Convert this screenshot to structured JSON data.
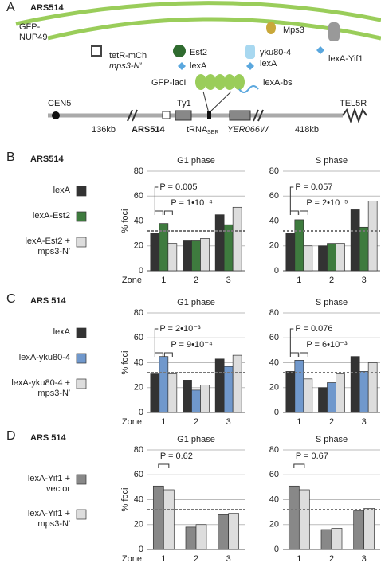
{
  "panel_a": {
    "label": "A",
    "title": "ARS514",
    "nup49": [
      "GFP-",
      "NUP49"
    ],
    "mps3": "Mps3",
    "tetr": "tetR-mCh",
    "mps3n": "mps3-N′",
    "est2": "Est2",
    "lexa1": "lexA",
    "yku": "yku80-4",
    "lexa2": "lexA",
    "yif1": "lexA-Yif1",
    "lacI": "GFP-lacI",
    "lexabs": "lexA-bs",
    "cen": "CEN5",
    "ty1": "Ty1",
    "tel": "TEL5R",
    "kb1": "136kb",
    "ars": "ARS514",
    "trna": "tRNA",
    "ser": "SER",
    "yer": "YER066W",
    "kb2": "418kb"
  },
  "chart_data": [
    {
      "type": "bar",
      "label": "B",
      "heading": "ARS514",
      "ylabel": "% foci",
      "xlabel": "Zone",
      "categories": [
        "1",
        "2",
        "3"
      ],
      "ylim": [
        0,
        80
      ],
      "yticks": [
        0,
        20,
        40,
        60,
        80
      ],
      "grid": true,
      "reference_line": 32,
      "series": [
        {
          "name": "lexA",
          "color": "#333333"
        },
        {
          "name": "lexA-Est2",
          "color": "#3e7b3e"
        },
        {
          "name": "lexA-Est2 + mps3-N′",
          "color": "#dddddd"
        }
      ],
      "facets": [
        {
          "title": "G1 phase",
          "series_values": [
            [
              30,
              24,
              45
            ],
            [
              38,
              24,
              37
            ],
            [
              22,
              26,
              51
            ]
          ],
          "annotations": [
            "P = 0.005",
            "P = 1•10⁻⁴"
          ]
        },
        {
          "title": "S phase",
          "series_values": [
            [
              30,
              20,
              49
            ],
            [
              41,
              22,
              35
            ],
            [
              20,
              22,
              56
            ]
          ],
          "annotations": [
            "P = 0.057",
            "P = 2•10⁻⁵"
          ]
        }
      ]
    },
    {
      "type": "bar",
      "label": "C",
      "heading": "ARS 514",
      "ylabel": "% foci",
      "xlabel": "Zone",
      "categories": [
        "1",
        "2",
        "3"
      ],
      "ylim": [
        0,
        80
      ],
      "yticks": [
        0,
        20,
        40,
        60,
        80
      ],
      "grid": true,
      "reference_line": 32,
      "series": [
        {
          "name": "lexA",
          "color": "#333333"
        },
        {
          "name": "lexA-yku80-4",
          "color": "#7098cc"
        },
        {
          "name": "lexA-yku80-4 + mps3-N′",
          "color": "#dddddd"
        }
      ],
      "facets": [
        {
          "title": "G1 phase",
          "series_values": [
            [
              31,
              26,
              43
            ],
            [
              45,
              18,
              37
            ],
            [
              31,
              22,
              46
            ]
          ],
          "annotations": [
            "P = 2•10⁻³",
            "P = 9•10⁻⁴"
          ]
        },
        {
          "title": "S phase",
          "series_values": [
            [
              33,
              20,
              45
            ],
            [
              42,
              24,
              33
            ],
            [
              27,
              31,
              40
            ]
          ],
          "annotations": [
            "P = 0.076",
            "P = 6•10⁻³"
          ]
        }
      ]
    },
    {
      "type": "bar",
      "label": "D",
      "heading": "ARS 514",
      "ylabel": "% foci",
      "xlabel": "Zone",
      "categories": [
        "1",
        "2",
        "3"
      ],
      "ylim": [
        0,
        80
      ],
      "yticks": [
        0,
        20,
        40,
        60,
        80
      ],
      "grid": true,
      "reference_line": 32,
      "series": [
        {
          "name": "lexA-Yif1 + vector",
          "color": "#888888"
        },
        {
          "name": "lexA-Yif1 + mps3-N′",
          "color": "#dddddd"
        }
      ],
      "facets": [
        {
          "title": "G1 phase",
          "series_values": [
            [
              51,
              18,
              28
            ],
            [
              48,
              20,
              29
            ]
          ],
          "annotations": [
            "P = 0.62"
          ]
        },
        {
          "title": "S phase",
          "series_values": [
            [
              51,
              16,
              31
            ],
            [
              48,
              17,
              33
            ]
          ],
          "annotations": [
            "P = 0.67"
          ]
        }
      ]
    }
  ]
}
